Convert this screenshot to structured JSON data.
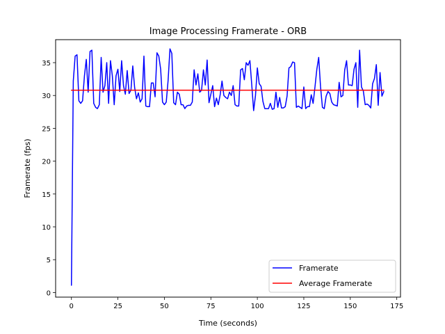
{
  "chart_data": {
    "type": "line",
    "title": "Image Processing Framerate - ORB",
    "xlabel": "Time (seconds)",
    "ylabel": "Framerate (fps)",
    "xlim": [
      -8.5,
      177
    ],
    "ylim": [
      -0.7,
      38.5
    ],
    "xticks": [
      0,
      25,
      50,
      75,
      100,
      125,
      150,
      175
    ],
    "yticks": [
      0,
      5,
      10,
      15,
      20,
      25,
      30,
      35
    ],
    "grid": false,
    "legend_position": "lower-right",
    "series": [
      {
        "name": "Framerate",
        "color": "#0000ff",
        "x": [
          0,
          1,
          2,
          3,
          4,
          5,
          6,
          7,
          8,
          9,
          10,
          11,
          12,
          13,
          14,
          15,
          16,
          17,
          18,
          19,
          20,
          21,
          22,
          23,
          24,
          25,
          26,
          27,
          28,
          29,
          30,
          31,
          32,
          33,
          34,
          35,
          36,
          37,
          38,
          39,
          40,
          41,
          42,
          43,
          44,
          45,
          46,
          47,
          48,
          49,
          50,
          51,
          52,
          53,
          54,
          55,
          56,
          57,
          58,
          59,
          60,
          61,
          62,
          63,
          64,
          65,
          66,
          67,
          68,
          69,
          70,
          71,
          72,
          73,
          74,
          75,
          76,
          77,
          78,
          79,
          80,
          81,
          82,
          83,
          84,
          85,
          86,
          87,
          88,
          89,
          90,
          91,
          92,
          93,
          94,
          95,
          96,
          97,
          98,
          99,
          100,
          101,
          102,
          103,
          104,
          105,
          106,
          107,
          108,
          109,
          110,
          111,
          112,
          113,
          114,
          115,
          116,
          117,
          118,
          119,
          120,
          121,
          122,
          123,
          124,
          125,
          126,
          127,
          128,
          129,
          130,
          131,
          132,
          133,
          134,
          135,
          136,
          137,
          138,
          139,
          140,
          141,
          142,
          143,
          144,
          145,
          146,
          147,
          148,
          149,
          150,
          151,
          152,
          153,
          154,
          155,
          156,
          157,
          158,
          159,
          160,
          161,
          162,
          163,
          164,
          165,
          166,
          167,
          168
        ],
        "y": [
          1.1,
          32.2,
          36.0,
          36.2,
          29.2,
          28.8,
          29.2,
          33.0,
          35.5,
          30.5,
          36.7,
          36.9,
          28.8,
          28.2,
          28.0,
          28.6,
          35.8,
          30.5,
          31.5,
          35.0,
          28.8,
          35.3,
          33.0,
          28.6,
          33.0,
          34.0,
          30.6,
          35.3,
          31.5,
          30.2,
          33.8,
          30.3,
          30.8,
          34.5,
          31.2,
          29.5,
          30.4,
          29.0,
          29.5,
          36.0,
          28.4,
          28.3,
          28.3,
          31.9,
          31.9,
          29.8,
          36.5,
          36.0,
          34.0,
          29.0,
          28.6,
          29.0,
          32.3,
          37.1,
          36.4,
          28.9,
          28.6,
          30.5,
          30.2,
          28.6,
          28.6,
          28.0,
          28.4,
          28.5,
          28.5,
          29.0,
          33.9,
          31.6,
          33.3,
          30.5,
          30.8,
          33.9,
          31.6,
          35.4,
          28.9,
          30.2,
          31.5,
          28.3,
          29.6,
          28.6,
          30.1,
          32.2,
          30.0,
          29.7,
          29.5,
          30.5,
          30.0,
          31.5,
          28.6,
          28.4,
          28.4,
          33.9,
          34.1,
          32.4,
          35.0,
          34.6,
          35.3,
          31.6,
          27.7,
          30.0,
          34.2,
          31.8,
          31.4,
          29.1,
          28.0,
          28.0,
          28.0,
          28.8,
          27.9,
          28.0,
          30.5,
          28.2,
          29.7,
          28.1,
          28.1,
          28.3,
          29.9,
          34.2,
          34.4,
          35.1,
          35.0,
          28.2,
          28.4,
          28.2,
          28.0,
          31.3,
          28.0,
          28.3,
          28.3,
          30.1,
          28.8,
          31.3,
          34.0,
          35.8,
          31.3,
          28.2,
          28.0,
          29.9,
          30.6,
          30.3,
          29.0,
          28.6,
          28.5,
          28.4,
          32.0,
          29.8,
          30.0,
          33.9,
          35.3,
          31.6,
          31.6,
          31.5,
          34.0,
          35.0,
          28.2,
          36.9,
          31.3,
          30.7,
          28.6,
          28.7,
          28.5,
          28.1,
          31.8,
          32.6,
          34.7,
          28.5,
          33.5,
          29.9,
          30.6
        ]
      },
      {
        "name": "Average Framerate",
        "color": "#ff0000",
        "x": [
          0,
          168
        ],
        "y": [
          30.8,
          30.8
        ]
      }
    ]
  }
}
